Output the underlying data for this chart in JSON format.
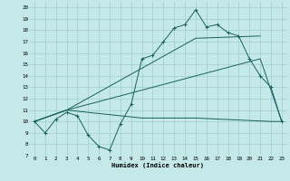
{
  "xlabel": "Humidex (Indice chaleur)",
  "xlim": [
    -0.5,
    23.5
  ],
  "ylim": [
    7,
    20.5
  ],
  "xticks": [
    0,
    1,
    2,
    3,
    4,
    5,
    6,
    7,
    8,
    9,
    10,
    11,
    12,
    13,
    14,
    15,
    16,
    17,
    18,
    19,
    20,
    21,
    22,
    23
  ],
  "yticks": [
    7,
    8,
    9,
    10,
    11,
    12,
    13,
    14,
    15,
    16,
    17,
    18,
    19,
    20
  ],
  "bg_color": "#c5e8e8",
  "grid_color": "#9dcece",
  "line_color": "#1a6060",
  "line1_x": [
    0,
    1,
    2,
    3,
    4,
    5,
    6,
    7,
    8,
    9,
    10,
    11,
    12,
    13,
    14,
    15,
    16,
    17,
    18,
    19,
    20,
    21,
    22,
    23
  ],
  "line1_y": [
    10,
    9,
    10.2,
    10.8,
    10.5,
    8.8,
    7.8,
    7.5,
    9.8,
    11.5,
    15.5,
    15.8,
    17,
    18.2,
    18.5,
    19.8,
    18.3,
    18.5,
    17.8,
    17.5,
    15.5,
    14,
    13,
    10
  ],
  "line2_x": [
    0,
    3,
    15,
    21
  ],
  "line2_y": [
    10,
    11,
    17.3,
    17.5
  ],
  "line3_x": [
    0,
    3,
    21,
    23
  ],
  "line3_y": [
    10,
    11,
    15.5,
    10
  ],
  "line4_x": [
    0,
    3,
    10,
    15,
    22,
    23
  ],
  "line4_y": [
    10,
    11,
    10.3,
    10.3,
    10,
    10
  ]
}
